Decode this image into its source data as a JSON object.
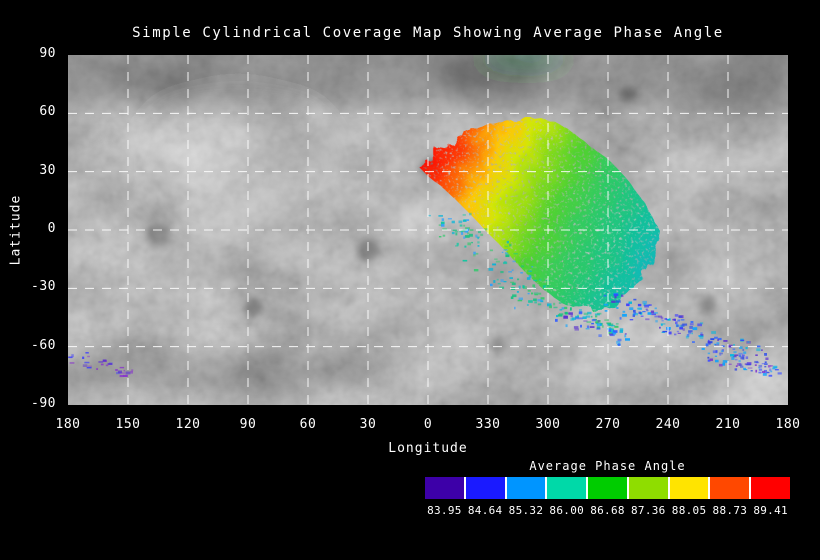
{
  "title": "Simple Cylindrical Coverage Map Showing Average Phase Angle",
  "axes": {
    "x_label": "Longitude",
    "y_label": "Latitude",
    "x_ticks": [
      "180",
      "150",
      "120",
      "90",
      "60",
      "30",
      "0",
      "330",
      "300",
      "270",
      "240",
      "210",
      "180"
    ],
    "y_ticks": [
      "90",
      "60",
      "30",
      "0",
      "-30",
      "-60",
      "-90"
    ]
  },
  "colorbar": {
    "title": "Average Phase Angle",
    "tick_labels": [
      "83.95",
      "84.64",
      "85.32",
      "86.00",
      "86.68",
      "87.36",
      "88.05",
      "88.73",
      "89.41"
    ],
    "segment_colors": [
      "#3d00a8",
      "#1a1aff",
      "#0095ff",
      "#00d9a8",
      "#00cc00",
      "#8fdd00",
      "#ffe400",
      "#ff4800",
      "#ff0000"
    ]
  },
  "chart_data": {
    "type": "heatmap",
    "title": "Simple Cylindrical Coverage Map Showing Average Phase Angle",
    "xlabel": "Longitude",
    "ylabel": "Latitude",
    "x_tick_values": [
      180,
      150,
      120,
      90,
      60,
      30,
      0,
      330,
      300,
      270,
      240,
      210,
      180
    ],
    "y_tick_values": [
      90,
      60,
      30,
      0,
      -30,
      -60,
      -90
    ],
    "ylim": [
      -90,
      90
    ],
    "grid": "white dashed graticule every 30 degrees",
    "value_name": "Average Phase Angle",
    "value_range": [
      83.95,
      89.41
    ],
    "colorbar_ticks": [
      83.95,
      84.64,
      85.32,
      86.0,
      86.68,
      87.36,
      88.05,
      88.73,
      89.41
    ],
    "colorbar_position": "bottom-right, discrete 9-segment rainbow (violet to red)",
    "coverage_region": {
      "lon_range_deg": [
        340,
        262
      ],
      "lat_range_deg": [
        56,
        -42
      ],
      "gradient": "phase angle ~89.4 (red) at northwest tip near lon 333 lat 30, decreasing through orange/yellow/green across the body to ~85 (cyan/teal) on the southeast edge",
      "speckle_trail": "scattered blue/violet low-phase patches trailing southeast to about lon 210 lat -60, plus isolated violet/blue specks near lon 180 lat -60 to -75"
    },
    "background": "grayscale simple-cylindrical basemap of a cratered body"
  }
}
